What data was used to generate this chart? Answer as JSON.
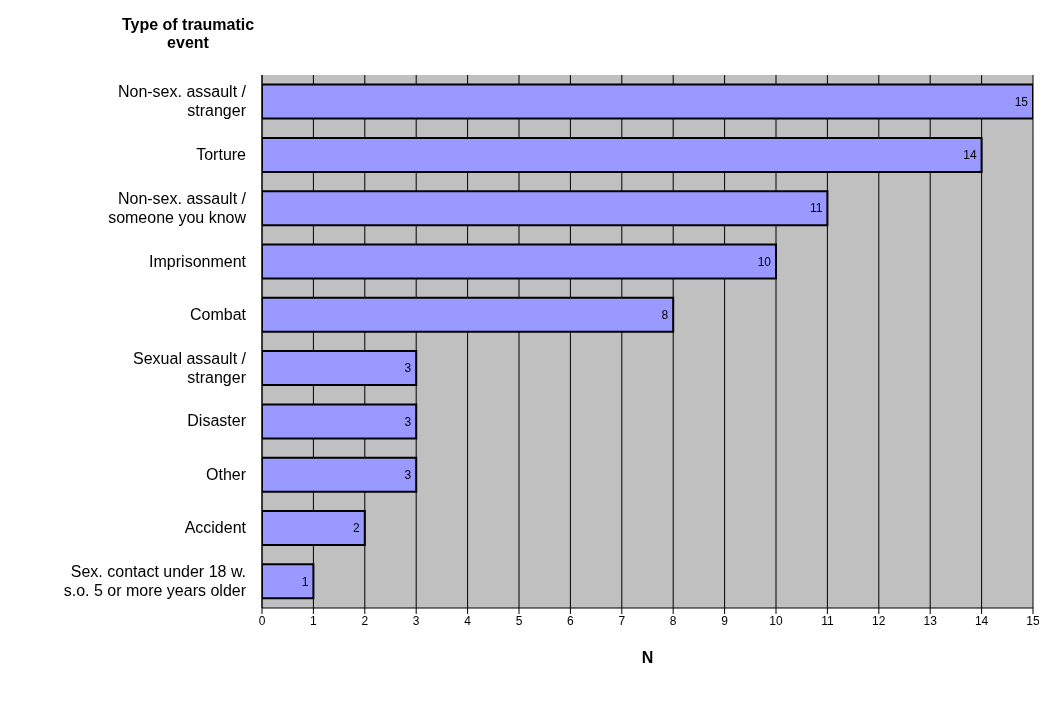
{
  "chart_data": {
    "type": "bar",
    "orientation": "horizontal",
    "ylabel": "Type of traumatic event",
    "xlabel": "N",
    "categories": [
      "Non-sex. assault /\nstranger",
      "Torture",
      "Non-sex. assault /\nsomeone you know",
      "Imprisonment",
      "Combat",
      "Sexual assault /\nstranger",
      "Disaster",
      "Other",
      "Accident",
      "Sex. contact under 18 w.\ns.o. 5 or more years older"
    ],
    "values": [
      15,
      14,
      11,
      10,
      8,
      3,
      3,
      3,
      2,
      1
    ],
    "color": "#9999ff",
    "xlim": [
      0,
      15
    ],
    "xticks": [
      0,
      1,
      2,
      3,
      4,
      5,
      6,
      7,
      8,
      9,
      10,
      11,
      12,
      13,
      14,
      15
    ],
    "grid": "x",
    "data_labels": true
  }
}
